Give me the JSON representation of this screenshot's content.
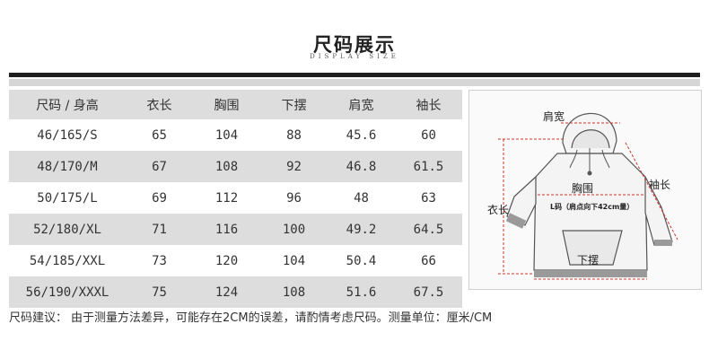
{
  "header": {
    "title": "尺码展示",
    "subtitle": "DISPLAY SIZE"
  },
  "table": {
    "headers": [
      "尺码 / 身高",
      "衣长",
      "胸围",
      "下摆",
      "肩宽",
      "袖长"
    ],
    "rows": [
      [
        "46/165/S",
        "65",
        "104",
        "88",
        "45.6",
        "60"
      ],
      [
        "48/170/M",
        "67",
        "108",
        "92",
        "46.8",
        "61.5"
      ],
      [
        "50/175/L",
        "69",
        "112",
        "96",
        "48",
        "63"
      ],
      [
        "52/180/XL",
        "71",
        "116",
        "100",
        "49.2",
        "64.5"
      ],
      [
        "54/185/XXL",
        "73",
        "120",
        "104",
        "50.4",
        "66"
      ],
      [
        "56/190/XXXL",
        "75",
        "124",
        "108",
        "51.6",
        "67.5"
      ]
    ]
  },
  "diagram": {
    "labels": {
      "shoulder": "肩宽",
      "sleeve": "袖长",
      "chest": "胸围",
      "length": "衣长",
      "hem": "下摆",
      "note": "L码（肩点向下42cm量）"
    },
    "colors": {
      "measure_line": "#d0342c",
      "garment_fill": "#f4f4f4",
      "garment_stroke": "#555555"
    }
  },
  "footer": {
    "label": "尺码建议：",
    "text": "由于测量方法差异，可能存在2CM的误差，请酌情考虑尺码。测量单位：厘米/CM"
  }
}
